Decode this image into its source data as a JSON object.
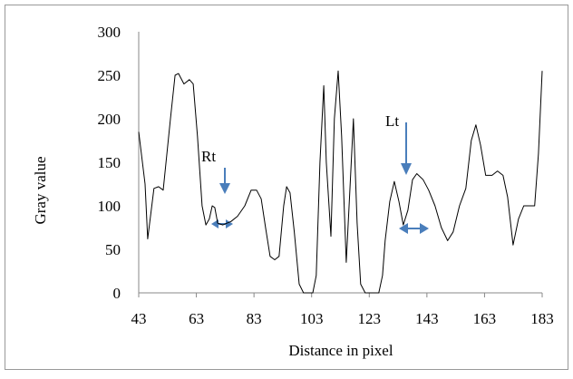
{
  "chart_data": {
    "type": "line",
    "x_label": "Distance in pixel",
    "y_label": "Gray value",
    "annotations": [
      "Rt",
      "Lt"
    ],
    "color": "#000000",
    "x": [
      43,
      45.2,
      46.1,
      48.3,
      49.9,
      51.5,
      54,
      55.6,
      56.8,
      58.7,
      60.6,
      61.9,
      63.4,
      65,
      66.3,
      67.5,
      68.5,
      69.4,
      70.4,
      72.2,
      75,
      77.3,
      79.8,
      82,
      83.9,
      85.5,
      87,
      88.6,
      90.2,
      91.7,
      93.3,
      94.3,
      95.5,
      97,
      98.7,
      100.2,
      101.8,
      103.4,
      104.6,
      105.9,
      107.2,
      108.1,
      109.7,
      110.9,
      112.2,
      113.4,
      115,
      116.3,
      117.5,
      118.8,
      120,
      121.6,
      123.8,
      126.3,
      127.6,
      128.5,
      130.1,
      131.7,
      133.3,
      134.8,
      136.4,
      138,
      139.5,
      141.7,
      143.6,
      145.8,
      148,
      150.2,
      152.1,
      154.3,
      156.5,
      158.4,
      160,
      161.6,
      163.4,
      165.6,
      167.5,
      169.4,
      171,
      172.9,
      174.8,
      176.6,
      178.5,
      180.4,
      181.7,
      183
    ],
    "values": [
      185,
      125,
      62,
      120,
      122,
      118,
      200,
      250,
      252,
      240,
      245,
      240,
      180,
      100,
      78,
      85,
      100,
      98,
      80,
      78,
      82,
      88,
      100,
      118,
      118,
      108,
      75,
      42,
      38,
      42,
      100,
      122,
      115,
      70,
      10,
      0,
      0,
      0,
      20,
      150,
      238,
      150,
      65,
      200,
      255,
      180,
      35,
      120,
      200,
      80,
      10,
      0,
      0,
      0,
      20,
      60,
      105,
      128,
      105,
      78,
      95,
      130,
      137,
      130,
      118,
      100,
      75,
      60,
      70,
      100,
      120,
      175,
      193,
      170,
      135,
      135,
      140,
      135,
      110,
      55,
      85,
      100,
      100,
      100,
      160,
      255
    ],
    "xlim": [
      43,
      183
    ],
    "xticks": [
      43,
      63,
      83,
      103,
      123,
      143,
      163,
      183
    ],
    "ylim": [
      0,
      300
    ],
    "yticks": [
      0,
      50,
      100,
      150,
      200,
      250,
      300
    ]
  }
}
